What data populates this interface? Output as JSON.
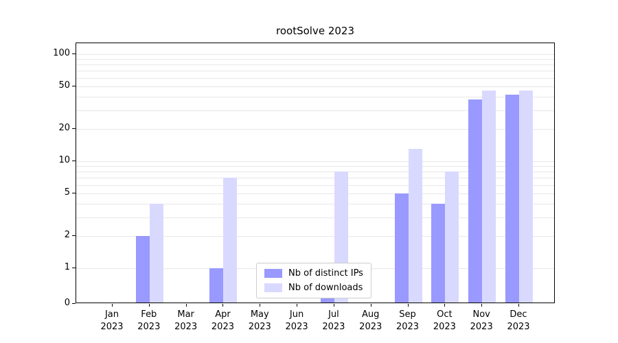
{
  "chart_data": {
    "type": "bar",
    "title": "rootSolve 2023",
    "categories": [
      "Jan",
      "Feb",
      "Mar",
      "Apr",
      "May",
      "Jun",
      "Jul",
      "Aug",
      "Sep",
      "Oct",
      "Nov",
      "Dec"
    ],
    "year": "2023",
    "series": [
      {
        "name": "Nb of distinct IPs",
        "color": "#9999ff",
        "values": [
          0,
          2,
          0,
          1,
          0,
          0,
          1,
          0,
          5,
          4,
          38,
          42
        ]
      },
      {
        "name": "Nb of downloads",
        "color": "#d9d9ff",
        "values": [
          0,
          4,
          0,
          7,
          0,
          0,
          8,
          0,
          13,
          8,
          46,
          46
        ]
      }
    ],
    "y_scale": "log-with-zero-baseline",
    "y_ticks": [
      0,
      1,
      2,
      5,
      10,
      20,
      50,
      100
    ],
    "gridline_values": [
      1,
      2,
      3,
      4,
      5,
      6,
      7,
      8,
      9,
      10,
      20,
      30,
      40,
      50,
      60,
      70,
      80,
      90,
      100
    ],
    "ylim_top": 130,
    "grid": "horizontal-log-minor",
    "legend_position": "lower-center",
    "grid_color": "#e7e7e7",
    "axis_color": "#000000"
  }
}
